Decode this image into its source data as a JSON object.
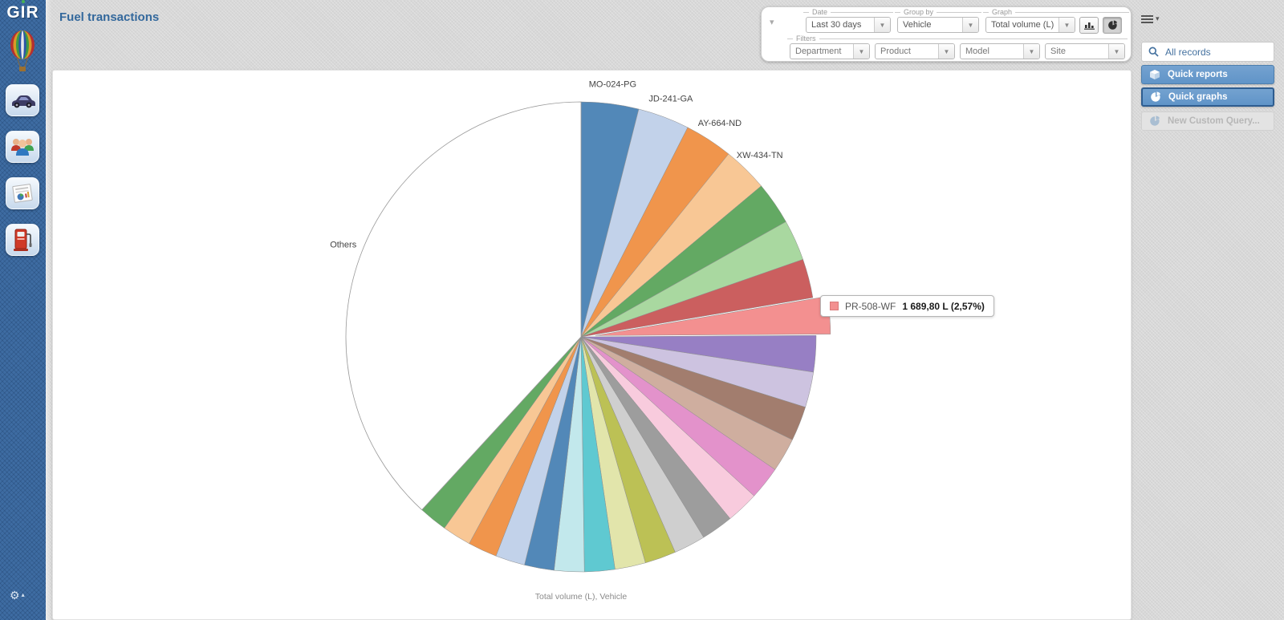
{
  "app": {
    "logo_text": "GIR",
    "title": "Fuel transactions"
  },
  "left_sidebar": {
    "icons": [
      "balloon-icon",
      "vehicle-icon",
      "drivers-icon",
      "reports-icon",
      "fuel-pump-icon",
      "gear-icon"
    ]
  },
  "filter_panel": {
    "date": {
      "legend": "Date",
      "value": "Last 30 days"
    },
    "group_by": {
      "legend": "Group by",
      "value": "Vehicle"
    },
    "graph": {
      "legend": "Graph",
      "value": "Total volume (L)"
    },
    "filters": {
      "legend": "Filters",
      "fields": [
        {
          "placeholder": "Department"
        },
        {
          "placeholder": "Product"
        },
        {
          "placeholder": "Model"
        },
        {
          "placeholder": "Site"
        }
      ]
    }
  },
  "right_sidebar": {
    "search": {
      "value": "All records"
    },
    "buttons": [
      {
        "label": "Quick reports",
        "state": "normal"
      },
      {
        "label": "Quick graphs",
        "state": "active"
      },
      {
        "label": "New Custom Query...",
        "state": "disabled"
      }
    ]
  },
  "tooltip": {
    "label": "PR-508-WF",
    "value": "1 689,80 L (2,57%)",
    "swatch_color": "#f39090"
  },
  "chart_data": {
    "type": "pie",
    "footer": "Total volume (L), Vehicle",
    "start_angle_deg": 0,
    "direction": "clockwise",
    "highlighted_slice": {
      "label": "PR-508-WF",
      "volume_l": "1 689,80",
      "percent": 2.57
    },
    "slices": [
      {
        "label": "MO-024-PG",
        "percent": 3.95,
        "color": "#5288b8",
        "show_label": true
      },
      {
        "label": "JD-241-GA",
        "percent": 3.55,
        "color": "#c2d2ea",
        "show_label": true
      },
      {
        "label": "AY-664-ND",
        "percent": 3.3,
        "color": "#f0954c",
        "show_label": true
      },
      {
        "label": "XW-434-TN",
        "percent": 3.1,
        "color": "#f8c795",
        "show_label": true
      },
      {
        "label": "",
        "percent": 2.95,
        "color": "#63a963",
        "show_label": false
      },
      {
        "label": "",
        "percent": 2.8,
        "color": "#a9d8a0",
        "show_label": false
      },
      {
        "label": "",
        "percent": 2.68,
        "color": "#cb5f5f",
        "show_label": false
      },
      {
        "label": "PR-508-WF",
        "percent": 2.57,
        "color": "#f39090",
        "show_label": false,
        "exploded": true
      },
      {
        "label": "",
        "percent": 2.5,
        "color": "#977fc4",
        "show_label": false
      },
      {
        "label": "",
        "percent": 2.44,
        "color": "#cdc3e0",
        "show_label": false
      },
      {
        "label": "",
        "percent": 2.38,
        "color": "#a27d6e",
        "show_label": false
      },
      {
        "label": "",
        "percent": 2.33,
        "color": "#cfae9f",
        "show_label": false
      },
      {
        "label": "",
        "percent": 2.28,
        "color": "#e392cb",
        "show_label": false
      },
      {
        "label": "",
        "percent": 2.24,
        "color": "#f8cbdd",
        "show_label": false
      },
      {
        "label": "",
        "percent": 2.2,
        "color": "#9d9d9d",
        "show_label": false
      },
      {
        "label": "",
        "percent": 2.17,
        "color": "#cfcfcf",
        "show_label": false
      },
      {
        "label": "",
        "percent": 2.14,
        "color": "#bcc155",
        "show_label": false
      },
      {
        "label": "",
        "percent": 2.11,
        "color": "#e2e5ab",
        "show_label": false
      },
      {
        "label": "",
        "percent": 2.08,
        "color": "#5fc9d1",
        "show_label": false
      },
      {
        "label": "",
        "percent": 2.06,
        "color": "#c2e8ec",
        "show_label": false
      },
      {
        "label": "",
        "percent": 2.04,
        "color": "#5288b8",
        "show_label": false
      },
      {
        "label": "",
        "percent": 2.02,
        "color": "#c2d2ea",
        "show_label": false
      },
      {
        "label": "",
        "percent": 2.0,
        "color": "#f0954c",
        "show_label": false
      },
      {
        "label": "",
        "percent": 1.98,
        "color": "#f8c795",
        "show_label": false
      },
      {
        "label": "",
        "percent": 1.96,
        "color": "#63a963",
        "show_label": false
      },
      {
        "label": "Others",
        "percent": 38.17,
        "color": "#ffffff",
        "show_label": true
      }
    ]
  },
  "colors": {
    "accent_blue": "#33689c",
    "button_blue": "#6899cb",
    "rail_blue": "#3e6ca2"
  }
}
